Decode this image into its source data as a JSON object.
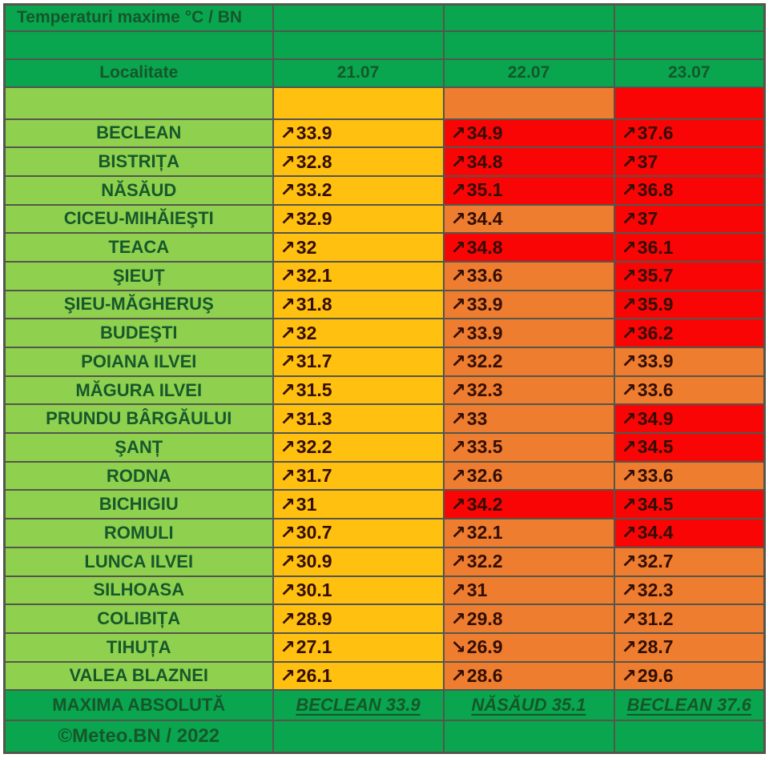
{
  "page": {
    "credit": "©Meteo.BN / 2022"
  },
  "colors": {
    "header_green": "#09a64f",
    "light_green": "#8fd14e",
    "yellow": "#ffc010",
    "orange": "#ee7d2f",
    "red": "#fa0506",
    "border": "#54564c",
    "heading_text": "#16562b",
    "value_text": "#330e04",
    "maxima_yellow": "#efdf3b",
    "maxima_darkred": "#b13a23",
    "maxima_red": "#e23c21"
  },
  "chart_data": {
    "type": "table",
    "title": "Temperaturi maxime °C / BN",
    "columns": [
      "Localitate",
      "21.07",
      "22.07",
      "23.07"
    ],
    "legend_band": [
      "yellow",
      "orange",
      "red"
    ],
    "rows": [
      {
        "locality": "BECLEAN",
        "temps": [
          {
            "arrow": "↗",
            "value": "33.9",
            "level": "yellow"
          },
          {
            "arrow": "↗",
            "value": "34.9",
            "level": "red"
          },
          {
            "arrow": "↗",
            "value": "37.6",
            "level": "red"
          }
        ]
      },
      {
        "locality": "BISTRIȚA",
        "temps": [
          {
            "arrow": "↗",
            "value": "32.8",
            "level": "yellow"
          },
          {
            "arrow": "↗",
            "value": "34.8",
            "level": "red"
          },
          {
            "arrow": "↗",
            "value": "37",
            "level": "red"
          }
        ]
      },
      {
        "locality": "NĂSĂUD",
        "temps": [
          {
            "arrow": "↗",
            "value": "33.2",
            "level": "yellow"
          },
          {
            "arrow": "↗",
            "value": "35.1",
            "level": "red"
          },
          {
            "arrow": "↗",
            "value": "36.8",
            "level": "red"
          }
        ]
      },
      {
        "locality": "CICEU-MIHĂIEŞTI",
        "temps": [
          {
            "arrow": "↗",
            "value": "32.9",
            "level": "yellow"
          },
          {
            "arrow": "↗",
            "value": "34.4",
            "level": "orange"
          },
          {
            "arrow": "↗",
            "value": "37",
            "level": "red"
          }
        ]
      },
      {
        "locality": "TEACA",
        "temps": [
          {
            "arrow": "↗",
            "value": "32",
            "level": "yellow"
          },
          {
            "arrow": "↗",
            "value": "34.8",
            "level": "red"
          },
          {
            "arrow": "↗",
            "value": "36.1",
            "level": "red"
          }
        ]
      },
      {
        "locality": "ŞIEUȚ",
        "temps": [
          {
            "arrow": "↗",
            "value": "32.1",
            "level": "yellow"
          },
          {
            "arrow": "↗",
            "value": "33.6",
            "level": "orange"
          },
          {
            "arrow": "↗",
            "value": "35.7",
            "level": "red"
          }
        ]
      },
      {
        "locality": "ŞIEU-MĂGHERUŞ",
        "temps": [
          {
            "arrow": "↗",
            "value": "31.8",
            "level": "yellow"
          },
          {
            "arrow": "↗",
            "value": "33.9",
            "level": "orange"
          },
          {
            "arrow": "↗",
            "value": "35.9",
            "level": "red"
          }
        ]
      },
      {
        "locality": "BUDEŞTI",
        "temps": [
          {
            "arrow": "↗",
            "value": "32",
            "level": "yellow"
          },
          {
            "arrow": "↗",
            "value": "33.9",
            "level": "orange"
          },
          {
            "arrow": "↗",
            "value": "36.2",
            "level": "red"
          }
        ]
      },
      {
        "locality": "POIANA ILVEI",
        "temps": [
          {
            "arrow": "↗",
            "value": "31.7",
            "level": "yellow"
          },
          {
            "arrow": "↗",
            "value": "32.2",
            "level": "orange"
          },
          {
            "arrow": "↗",
            "value": "33.9",
            "level": "orange"
          }
        ]
      },
      {
        "locality": "MĂGURA ILVEI",
        "temps": [
          {
            "arrow": "↗",
            "value": "31.5",
            "level": "yellow"
          },
          {
            "arrow": "↗",
            "value": "32.3",
            "level": "orange"
          },
          {
            "arrow": "↗",
            "value": "33.6",
            "level": "orange"
          }
        ]
      },
      {
        "locality": "PRUNDU BÂRGĂULUI",
        "temps": [
          {
            "arrow": "↗",
            "value": "31.3",
            "level": "yellow"
          },
          {
            "arrow": "↗",
            "value": "33",
            "level": "orange"
          },
          {
            "arrow": "↗",
            "value": "34.9",
            "level": "red"
          }
        ]
      },
      {
        "locality": "ŞANȚ",
        "temps": [
          {
            "arrow": "↗",
            "value": "32.2",
            "level": "yellow"
          },
          {
            "arrow": "↗",
            "value": "33.5",
            "level": "orange"
          },
          {
            "arrow": "↗",
            "value": "34.5",
            "level": "red"
          }
        ]
      },
      {
        "locality": "RODNA",
        "temps": [
          {
            "arrow": "↗",
            "value": "31.7",
            "level": "yellow"
          },
          {
            "arrow": "↗",
            "value": "32.6",
            "level": "orange"
          },
          {
            "arrow": "↗",
            "value": "33.6",
            "level": "orange"
          }
        ]
      },
      {
        "locality": "BICHIGIU",
        "temps": [
          {
            "arrow": "↗",
            "value": "31",
            "level": "yellow"
          },
          {
            "arrow": "↗",
            "value": "34.2",
            "level": "red"
          },
          {
            "arrow": "↗",
            "value": "34.5",
            "level": "red"
          }
        ]
      },
      {
        "locality": "ROMULI",
        "temps": [
          {
            "arrow": "↗",
            "value": "30.7",
            "level": "yellow"
          },
          {
            "arrow": "↗",
            "value": "32.1",
            "level": "orange"
          },
          {
            "arrow": "↗",
            "value": "34.4",
            "level": "red"
          }
        ]
      },
      {
        "locality": "LUNCA ILVEI",
        "temps": [
          {
            "arrow": "↗",
            "value": "30.9",
            "level": "yellow"
          },
          {
            "arrow": "↗",
            "value": "32.2",
            "level": "orange"
          },
          {
            "arrow": "↗",
            "value": "32.7",
            "level": "orange"
          }
        ]
      },
      {
        "locality": "SILHOASA",
        "temps": [
          {
            "arrow": "↗",
            "value": "30.1",
            "level": "yellow"
          },
          {
            "arrow": "↗",
            "value": "31",
            "level": "orange"
          },
          {
            "arrow": "↗",
            "value": "32.3",
            "level": "orange"
          }
        ]
      },
      {
        "locality": "COLIBIȚA",
        "temps": [
          {
            "arrow": "↗",
            "value": "28.9",
            "level": "yellow"
          },
          {
            "arrow": "↗",
            "value": "29.8",
            "level": "orange"
          },
          {
            "arrow": "↗",
            "value": "31.2",
            "level": "orange"
          }
        ]
      },
      {
        "locality": "TIHUȚA",
        "temps": [
          {
            "arrow": "↗",
            "value": "27.1",
            "level": "yellow"
          },
          {
            "arrow": "↘",
            "value": "26.9",
            "level": "orange"
          },
          {
            "arrow": "↗",
            "value": "28.7",
            "level": "orange"
          }
        ]
      },
      {
        "locality": "VALEA BLAZNEI",
        "temps": [
          {
            "arrow": "↗",
            "value": "26.1",
            "level": "yellow"
          },
          {
            "arrow": "↗",
            "value": "28.6",
            "level": "orange"
          },
          {
            "arrow": "↗",
            "value": "29.6",
            "level": "orange"
          }
        ]
      }
    ],
    "maxima": {
      "label": "MAXIMA ABSOLUTĂ",
      "values": [
        {
          "text": "BECLEAN 33.9",
          "level": "yellow"
        },
        {
          "text": "NĂSĂUD 35.1",
          "level": "darkred"
        },
        {
          "text": "BECLEAN 37.6",
          "level": "red"
        }
      ]
    }
  }
}
